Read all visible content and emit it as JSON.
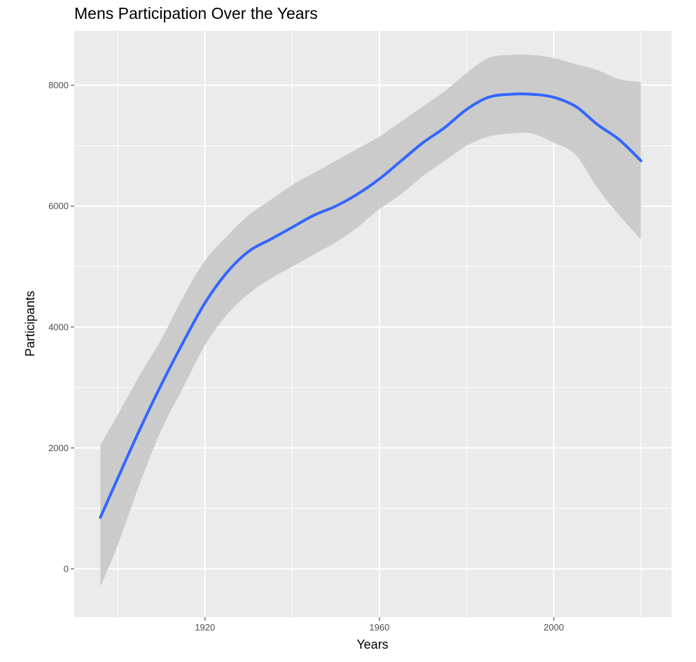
{
  "chart_data": {
    "type": "line",
    "title": "Mens Participation Over the Years",
    "xlabel": "Years",
    "ylabel": "Participants",
    "xlim": [
      1890,
      2027
    ],
    "ylim": [
      -800,
      8900
    ],
    "x_major_ticks": [
      1920,
      1960,
      2000
    ],
    "x_minor_ticks": [
      1900,
      1940,
      1980,
      2020
    ],
    "y_major_ticks": [
      0,
      2000,
      4000,
      6000,
      8000
    ],
    "y_minor_ticks": [
      1000,
      3000,
      5000,
      7000
    ],
    "x_tick_labels": [
      "1920",
      "1960",
      "2000"
    ],
    "y_tick_labels": [
      "0",
      "2000",
      "4000",
      "6000",
      "8000"
    ],
    "grid": true,
    "smooth": true,
    "colors": {
      "panel": "#ebebeb",
      "gridline": "#ffffff",
      "line": "#3366ff",
      "ribbon": "#c8c8c8"
    },
    "series": [
      {
        "x": [
          1896,
          1900,
          1905,
          1910,
          1915,
          1920,
          1925,
          1930,
          1935,
          1940,
          1945,
          1950,
          1955,
          1960,
          1965,
          1970,
          1975,
          1980,
          1985,
          1990,
          1995,
          2000,
          2005,
          2010,
          2015,
          2020
        ],
        "y": [
          850,
          1500,
          2300,
          3050,
          3750,
          4400,
          4900,
          5250,
          5450,
          5650,
          5850,
          6000,
          6200,
          6450,
          6750,
          7050,
          7300,
          7600,
          7800,
          7850,
          7850,
          7800,
          7650,
          7350,
          7100,
          6750
        ],
        "lower": [
          -300,
          400,
          1400,
          2300,
          3000,
          3700,
          4200,
          4550,
          4800,
          5000,
          5200,
          5400,
          5650,
          5950,
          6200,
          6500,
          6750,
          7000,
          7150,
          7200,
          7200,
          7050,
          6850,
          6300,
          5850,
          5450
        ],
        "upper": [
          2050,
          2550,
          3200,
          3800,
          4500,
          5100,
          5500,
          5850,
          6100,
          6350,
          6550,
          6750,
          6950,
          7150,
          7400,
          7650,
          7900,
          8200,
          8450,
          8500,
          8500,
          8450,
          8350,
          8250,
          8100,
          8050
        ]
      }
    ]
  }
}
